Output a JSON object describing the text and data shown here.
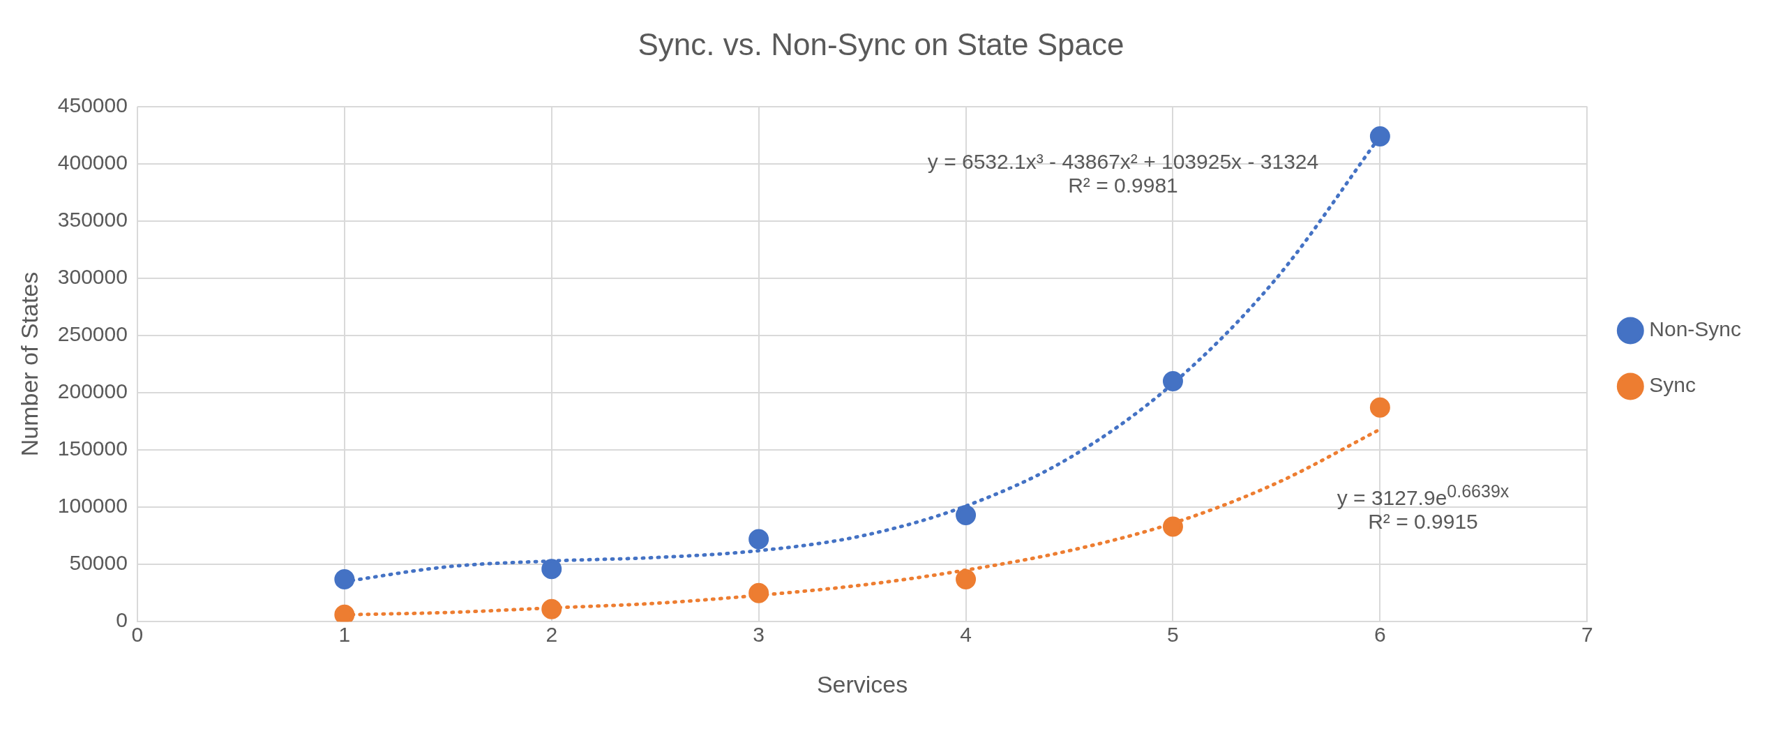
{
  "chart_data": {
    "type": "scatter",
    "title": "Sync. vs. Non-Sync on State Space",
    "xlabel": "Services",
    "ylabel": "Number of States",
    "x": [
      1,
      2,
      3,
      4,
      5,
      6
    ],
    "series": [
      {
        "name": "Non-Sync",
        "color": "#4472c4",
        "type": "scatter",
        "marker": "circle",
        "values": [
          37000,
          46000,
          72000,
          93000,
          210000,
          424000
        ]
      },
      {
        "name": "Sync",
        "color": "#ed7d31",
        "type": "scatter",
        "marker": "circle",
        "values": [
          6000,
          11000,
          25000,
          37000,
          83000,
          187000
        ]
      },
      {
        "color": "#4472c4",
        "type": "line",
        "marker": "none",
        "line_style": "dotted",
        "x": [
          1,
          1.5,
          2,
          2.5,
          3,
          3.5,
          4,
          4.5,
          5,
          5.5,
          6
        ],
        "values": [
          35000,
          48000,
          53000,
          56000,
          62000,
          75000,
          101000,
          143000,
          208000,
          300000,
          424000
        ]
      },
      {
        "color": "#ed7d31",
        "type": "line",
        "marker": "none",
        "line_style": "dotted",
        "x": [
          1,
          1.5,
          2,
          2.5,
          3,
          3.5,
          4,
          4.5,
          5,
          5.5,
          6
        ],
        "values": [
          6000,
          8000,
          12000,
          16000,
          23000,
          32000,
          45000,
          62000,
          86000,
          121000,
          168000
        ]
      }
    ],
    "xlim": [
      0,
      7
    ],
    "xticks": [
      0,
      1,
      2,
      3,
      4,
      5,
      6,
      7
    ],
    "ylim": [
      0,
      450000
    ],
    "yticks": [
      0,
      50000,
      100000,
      150000,
      200000,
      250000,
      300000,
      350000,
      400000,
      450000
    ],
    "grid": true,
    "legend": "right",
    "annotations": [
      "y = 6532.1x³ - 43867x² + 103925x - 31324\nR² = 0.9981",
      "y = 3127.9e$^{0.6639x}$\nR² = 0.9915"
    ]
  }
}
